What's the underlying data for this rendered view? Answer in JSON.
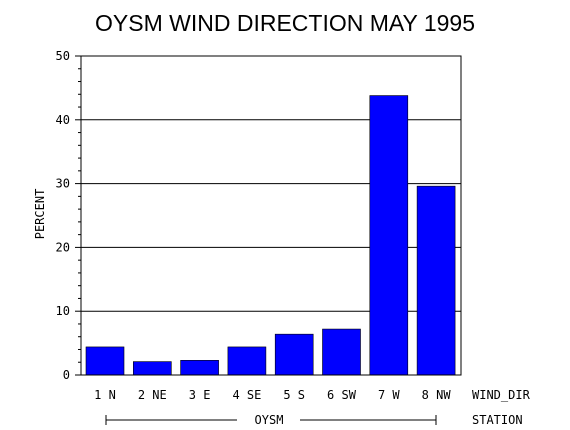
{
  "chart_data": {
    "type": "bar",
    "title": "OYSM WIND DIRECTION MAY 1995",
    "ylabel": "PERCENT",
    "xlabel": "WIND_DIR",
    "group_axis_label": "STATION",
    "group_label": "OYSM",
    "categories": [
      "1 N",
      "2 NE",
      "3 E",
      "4 SE",
      "5 S",
      "6 SW",
      "7 W",
      "8 NW"
    ],
    "values": [
      4.4,
      2.1,
      2.3,
      4.4,
      6.4,
      7.2,
      43.8,
      29.6
    ],
    "ylim": [
      0,
      50
    ],
    "yticks": [
      0,
      10,
      20,
      30,
      40,
      50
    ],
    "grid": true,
    "bar_color": "#0000ff"
  }
}
